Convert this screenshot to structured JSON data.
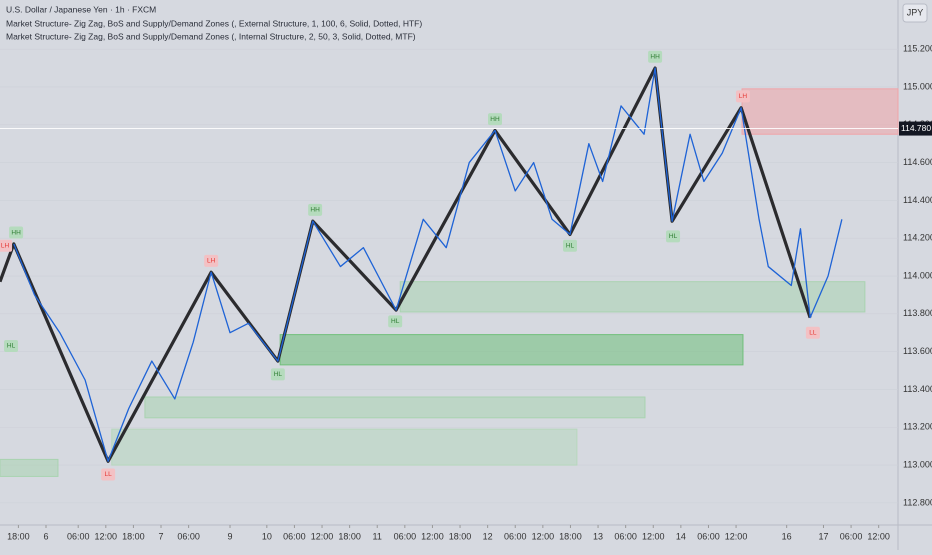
{
  "chart_data": {
    "type": "candlestick-structure",
    "title": "U.S. Dollar / Japanese Yen · 1h · FXCM",
    "indicators": [
      "Market Structure- Zig Zag, BoS and Supply/Demand Zones (, External Structure, 1, 100, 6, Solid, Dotted, HTF)",
      "Market Structure- Zig Zag, BoS and Supply/Demand Zones (, Internal Structure, 2, 50, 3, Solid, Dotted, MTF)"
    ],
    "currency": "JPY",
    "xlim": [
      0,
      195.2
    ],
    "ylim": [
      112.683,
      115.46
    ],
    "yticks": [
      {
        "value": 112.8,
        "label": "112.800"
      },
      {
        "value": 113.0,
        "label": "113.000"
      },
      {
        "value": 113.2,
        "label": "113.200"
      },
      {
        "value": 113.4,
        "label": "113.400"
      },
      {
        "value": 113.6,
        "label": "113.600"
      },
      {
        "value": 113.8,
        "label": "113.800"
      },
      {
        "value": 114.0,
        "label": "114.000"
      },
      {
        "value": 114.2,
        "label": "114.200"
      },
      {
        "value": 114.4,
        "label": "114.400"
      },
      {
        "value": 114.6,
        "label": "114.600"
      },
      {
        "value": 114.8,
        "label": "114.800"
      },
      {
        "value": 115.0,
        "label": "115.000"
      },
      {
        "value": 115.2,
        "label": "115.200"
      }
    ],
    "xticks": [
      {
        "value": 4,
        "label": "18:00"
      },
      {
        "value": 10,
        "label": "6"
      },
      {
        "value": 17,
        "label": "06:00"
      },
      {
        "value": 23,
        "label": "12:00"
      },
      {
        "value": 29,
        "label": "18:00"
      },
      {
        "value": 35,
        "label": "7"
      },
      {
        "value": 41,
        "label": "06:00"
      },
      {
        "value": 50,
        "label": "9"
      },
      {
        "value": 58,
        "label": "10"
      },
      {
        "value": 64,
        "label": "06:00"
      },
      {
        "value": 70,
        "label": "12:00"
      },
      {
        "value": 76,
        "label": "18:00"
      },
      {
        "value": 82,
        "label": "11"
      },
      {
        "value": 88,
        "label": "06:00"
      },
      {
        "value": 94,
        "label": "12:00"
      },
      {
        "value": 100,
        "label": "18:00"
      },
      {
        "value": 106,
        "label": "12"
      },
      {
        "value": 112,
        "label": "06:00"
      },
      {
        "value": 118,
        "label": "12:00"
      },
      {
        "value": 124,
        "label": "18:00"
      },
      {
        "value": 130,
        "label": "13"
      },
      {
        "value": 136,
        "label": "06:00"
      },
      {
        "value": 142,
        "label": "12:00"
      },
      {
        "value": 148,
        "label": "14"
      },
      {
        "value": 154,
        "label": "06:00"
      },
      {
        "value": 160,
        "label": "12:00"
      },
      {
        "value": 171,
        "label": "16"
      },
      {
        "value": 179,
        "label": "17"
      },
      {
        "value": 185,
        "label": "06:00"
      },
      {
        "value": 191,
        "label": "12:00"
      }
    ],
    "series": [
      {
        "name": "External Structure",
        "color": "#2b2b2e",
        "x": [
          0,
          3.0,
          23.5,
          45.9,
          60.4,
          68.0,
          86.1,
          107.6,
          123.9,
          142.4,
          146.1,
          161.1,
          176.1
        ],
        "values": [
          113.97,
          114.17,
          113.02,
          114.02,
          113.55,
          114.29,
          113.82,
          114.77,
          114.22,
          115.1,
          114.29,
          114.89,
          113.78
        ]
      },
      {
        "name": "Internal Structure",
        "color": "#1e63d6",
        "x": [
          3.0,
          7.5,
          13.0,
          18.5,
          23.5,
          28.0,
          33.0,
          38.0,
          42.0,
          45.9,
          50.0,
          54.0,
          60.4,
          64.0,
          68.0,
          74.0,
          79.0,
          86.1,
          92.0,
          97.0,
          102.0,
          107.6,
          112.0,
          116.0,
          120.0,
          123.9,
          128.0,
          131.0,
          135.0,
          140.0,
          142.4,
          146.1,
          150.0,
          153.0,
          157.0,
          161.1,
          165.0,
          167.0,
          172.0,
          174.0,
          176.1,
          180.0,
          183.0
        ],
        "values": [
          114.17,
          113.9,
          113.7,
          113.45,
          113.02,
          113.3,
          113.55,
          113.35,
          113.65,
          114.02,
          113.7,
          113.75,
          113.55,
          113.9,
          114.29,
          114.05,
          114.15,
          113.82,
          114.3,
          114.15,
          114.6,
          114.77,
          114.45,
          114.6,
          114.3,
          114.22,
          114.7,
          114.5,
          114.9,
          114.75,
          115.1,
          114.29,
          114.75,
          114.5,
          114.65,
          114.89,
          114.3,
          114.05,
          113.95,
          114.25,
          113.78,
          114.0,
          114.3
        ]
      }
    ],
    "zones": [
      {
        "kind": "supply",
        "color": "#f0a4a8",
        "x": [
          161.3,
          195.2
        ],
        "y": [
          114.99,
          114.75
        ]
      },
      {
        "kind": "demand",
        "color": "#6fbf7a",
        "x": [
          60.9,
          161.5
        ],
        "y": [
          113.69,
          113.53
        ]
      },
      {
        "kind": "demand",
        "color": "#a9d3b0",
        "x": [
          87.0,
          188.0
        ],
        "y": [
          113.97,
          113.81
        ]
      },
      {
        "kind": "demand",
        "color": "#a9d3b0",
        "x": [
          31.5,
          140.2
        ],
        "y": [
          113.36,
          113.25
        ]
      },
      {
        "kind": "demand",
        "color": "#b7d7bd",
        "x": [
          24.3,
          125.4
        ],
        "y": [
          113.19,
          113.0
        ]
      },
      {
        "kind": "demand",
        "color": "#a9d3b0",
        "x": [
          0,
          12.6
        ],
        "y": [
          113.03,
          112.94
        ]
      }
    ],
    "pivots": [
      {
        "label": "LH",
        "x": 1.1,
        "y": 114.16
      },
      {
        "label": "HH",
        "x": 3.5,
        "y": 114.23
      },
      {
        "label": "HL",
        "x": 2.4,
        "y": 113.63
      },
      {
        "label": "LL",
        "x": 23.5,
        "y": 112.95
      },
      {
        "label": "LH",
        "x": 45.9,
        "y": 114.08
      },
      {
        "label": "HL",
        "x": 60.4,
        "y": 113.48
      },
      {
        "label": "HH",
        "x": 68.5,
        "y": 114.35
      },
      {
        "label": "HL",
        "x": 85.9,
        "y": 113.76
      },
      {
        "label": "HH",
        "x": 107.6,
        "y": 114.83
      },
      {
        "label": "HL",
        "x": 123.9,
        "y": 114.16
      },
      {
        "label": "HH",
        "x": 142.4,
        "y": 115.16
      },
      {
        "label": "HL",
        "x": 146.3,
        "y": 114.21
      },
      {
        "label": "LH",
        "x": 161.5,
        "y": 114.95
      },
      {
        "label": "LL",
        "x": 176.7,
        "y": 113.7
      }
    ],
    "last_price": 114.78,
    "last_price_label": "114.780"
  }
}
